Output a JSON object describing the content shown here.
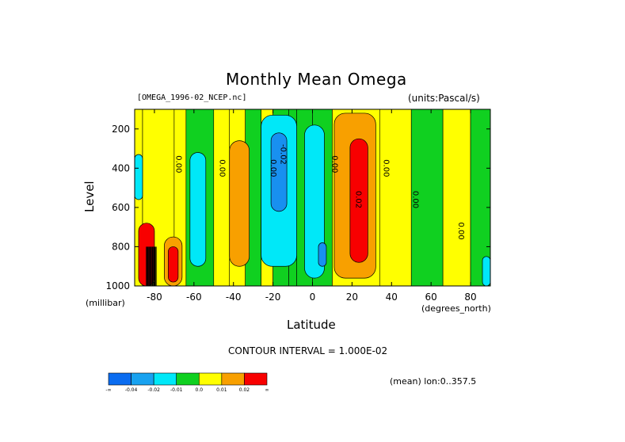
{
  "chart_data": {
    "type": "heatmap",
    "title": "Monthly Mean Omega",
    "file_label": "[OMEGA_1996-02_NCEP.nc]",
    "units_label": "(units:Pascal/s)",
    "xlabel": "Latitude",
    "ylabel": "Level",
    "x_unit_label": "(degrees_north)",
    "y_unit_label": "(millibar)",
    "x_ticks": [
      "-80",
      "-60",
      "-40",
      "-20",
      "0",
      "20",
      "40",
      "60",
      "80"
    ],
    "x_tick_values": [
      -80,
      -60,
      -40,
      -20,
      0,
      20,
      40,
      60,
      80
    ],
    "y_ticks": [
      "200",
      "400",
      "600",
      "800",
      "1000"
    ],
    "y_tick_values": [
      200,
      400,
      600,
      800,
      1000
    ],
    "xlim": [
      -90,
      90
    ],
    "ylim": [
      1000,
      100
    ],
    "contour_interval_text": "CONTOUR INTERVAL = 1.000E-02",
    "mean_text": "(mean) lon:0..357.5",
    "contour_labels": [
      {
        "text": "0.00",
        "lat": -69,
        "lev": 380
      },
      {
        "text": "0.00",
        "lat": -47,
        "lev": 400
      },
      {
        "text": "0.00",
        "lat": -21,
        "lev": 400
      },
      {
        "text": "-0.02",
        "lat": -16,
        "lev": 330
      },
      {
        "text": "0.00",
        "lat": 10,
        "lev": 380
      },
      {
        "text": "0.02",
        "lat": 22,
        "lev": 560
      },
      {
        "text": "0.00",
        "lat": 36,
        "lev": 400
      },
      {
        "text": "0.00",
        "lat": 51,
        "lev": 560
      },
      {
        "text": "0.00",
        "lat": 74,
        "lev": 720
      }
    ],
    "bands": [
      {
        "lat": [
          -90,
          -86
        ],
        "class": "yellow",
        "top": 100
      },
      {
        "lat": [
          -86,
          -70
        ],
        "class": "yellow",
        "top": 100
      },
      {
        "lat": [
          -70,
          -64
        ],
        "class": "yellow",
        "top": 100
      },
      {
        "lat": [
          -64,
          -50
        ],
        "class": "green",
        "top": 100
      },
      {
        "lat": [
          -50,
          -42
        ],
        "class": "yellow",
        "top": 100
      },
      {
        "lat": [
          -42,
          -34
        ],
        "class": "yellow",
        "top": 100
      },
      {
        "lat": [
          -34,
          -26
        ],
        "class": "green",
        "top": 100
      },
      {
        "lat": [
          -26,
          -20
        ],
        "class": "yellow",
        "top": 100
      },
      {
        "lat": [
          -20,
          -12
        ],
        "class": "green",
        "top": 100
      },
      {
        "lat": [
          -12,
          -8
        ],
        "class": "green",
        "top": 100
      },
      {
        "lat": [
          -8,
          0
        ],
        "class": "green",
        "top": 100
      },
      {
        "lat": [
          0,
          10
        ],
        "class": "green",
        "top": 100
      },
      {
        "lat": [
          10,
          34
        ],
        "class": "yellow",
        "top": 100
      },
      {
        "lat": [
          34,
          50
        ],
        "class": "yellow",
        "top": 100
      },
      {
        "lat": [
          50,
          66
        ],
        "class": "green",
        "top": 100
      },
      {
        "lat": [
          66,
          80
        ],
        "class": "yellow",
        "top": 100
      },
      {
        "lat": [
          80,
          90
        ],
        "class": "green",
        "top": 100
      }
    ],
    "features": [
      {
        "class": "orange",
        "lat": [
          -42,
          -32
        ],
        "lev": [
          260,
          900
        ]
      },
      {
        "class": "lightblue",
        "lat": [
          -26,
          -8
        ],
        "lev": [
          130,
          900
        ]
      },
      {
        "class": "blue",
        "lat": [
          -21,
          -13
        ],
        "lev": [
          220,
          620
        ]
      },
      {
        "class": "lightblue",
        "lat": [
          -62,
          -54
        ],
        "lev": [
          320,
          900
        ]
      },
      {
        "class": "lightblue",
        "lat": [
          -4,
          6
        ],
        "lev": [
          180,
          960
        ]
      },
      {
        "class": "blue",
        "lat": [
          3,
          7
        ],
        "lev": [
          780,
          900
        ]
      },
      {
        "class": "orange",
        "lat": [
          11,
          32
        ],
        "lev": [
          120,
          960
        ]
      },
      {
        "class": "red",
        "lat": [
          19,
          28
        ],
        "lev": [
          250,
          880
        ]
      },
      {
        "class": "orange",
        "lat": [
          -75,
          -66
        ],
        "lev": [
          750,
          1000
        ]
      },
      {
        "class": "red",
        "lat": [
          -73,
          -68
        ],
        "lev": [
          800,
          980
        ]
      },
      {
        "class": "red",
        "lat": [
          -88,
          -80
        ],
        "lev": [
          680,
          1000
        ]
      },
      {
        "class": "lightblue",
        "lat": [
          -90,
          -86
        ],
        "lev": [
          330,
          560
        ]
      },
      {
        "class": "lightblue",
        "lat": [
          86,
          90
        ],
        "lev": [
          850,
          1000
        ]
      }
    ],
    "colorbar": {
      "colors": [
        "#0a6cf0",
        "#18a2f0",
        "#00e8f8",
        "#10d020",
        "#ffff00",
        "#f8a000",
        "#f80000"
      ],
      "labels": [
        "-∞",
        "-0.04",
        "-0.02",
        "-0.01",
        "0.0",
        "0.01",
        "0.02",
        "∞"
      ]
    },
    "palette": {
      "blue": "#1890f0",
      "lightblue": "#00e8f8",
      "green": "#10d020",
      "yellow": "#ffff00",
      "orange": "#f8a000",
      "red": "#f80000"
    }
  }
}
